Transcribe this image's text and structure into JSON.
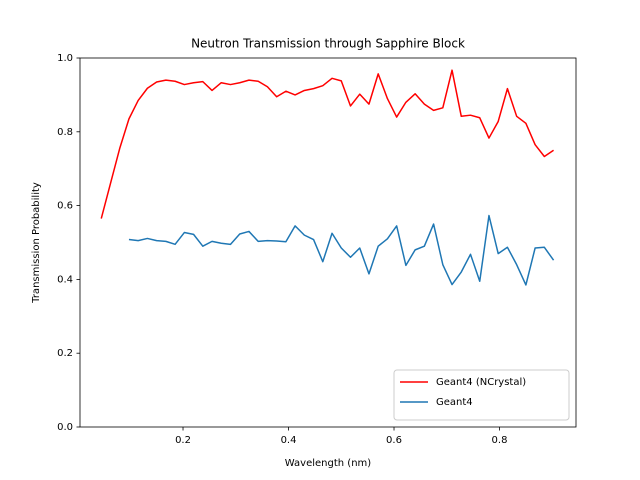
{
  "chart_data": {
    "type": "line",
    "title": "Neutron Transmission through Sapphire Block",
    "xlabel": "Wavelength (nm)",
    "ylabel": "Transmission Probability",
    "x": [
      0.045,
      0.0625,
      0.08,
      0.0975,
      0.115,
      0.1325,
      0.15,
      0.1675,
      0.185,
      0.2025,
      0.22,
      0.2375,
      0.255,
      0.2725,
      0.29,
      0.3075,
      0.325,
      0.3425,
      0.36,
      0.3775,
      0.395,
      0.4125,
      0.43,
      0.4475,
      0.465,
      0.4825,
      0.5,
      0.5175,
      0.535,
      0.5525,
      0.57,
      0.5875,
      0.605,
      0.6225,
      0.64,
      0.6575,
      0.675,
      0.6925,
      0.71,
      0.7275,
      0.745,
      0.7625,
      0.78,
      0.7975,
      0.815,
      0.8325,
      0.85,
      0.8675,
      0.885,
      0.9025
    ],
    "series": [
      {
        "name": "Geant4 (NCrystal)",
        "color": "#ff0000",
        "values": [
          0.565,
          0.66,
          0.755,
          0.835,
          0.885,
          0.918,
          0.935,
          0.94,
          0.937,
          0.928,
          0.933,
          0.936,
          0.912,
          0.933,
          0.928,
          0.933,
          0.94,
          0.937,
          0.922,
          0.895,
          0.91,
          0.9,
          0.912,
          0.917,
          0.925,
          0.945,
          0.938,
          0.87,
          0.902,
          0.875,
          0.957,
          0.89,
          0.84,
          0.88,
          0.903,
          0.875,
          0.858,
          0.865,
          0.967,
          0.842,
          0.845,
          0.838,
          0.783,
          0.828,
          0.917,
          0.842,
          0.823,
          0.765,
          0.733,
          0.75
        ]
      },
      {
        "name": "Geant4",
        "color": "#1f77b4",
        "values": [
          null,
          null,
          null,
          0.508,
          0.505,
          0.511,
          0.505,
          0.503,
          0.495,
          0.527,
          0.522,
          0.49,
          0.503,
          0.498,
          0.495,
          0.523,
          0.53,
          0.503,
          0.505,
          0.504,
          0.502,
          0.545,
          0.52,
          0.508,
          0.448,
          0.525,
          0.485,
          0.46,
          0.485,
          0.415,
          0.49,
          0.51,
          0.545,
          0.438,
          0.48,
          0.49,
          0.55,
          0.44,
          0.386,
          0.42,
          0.468,
          0.395,
          0.573,
          0.47,
          0.487,
          0.44,
          0.385,
          0.485,
          0.487,
          0.452
        ]
      }
    ],
    "xlim": [
      0.0047,
      0.945
    ],
    "ylim": [
      0,
      1
    ],
    "xticks": [
      0.2,
      0.4,
      0.6,
      0.8
    ],
    "yticks": [
      {
        "value": 0,
        "label": "0.0"
      },
      0.2,
      0.4,
      0.6,
      0.8,
      {
        "value": 1,
        "label": "1.0"
      }
    ],
    "legend": "lower right",
    "grid": false
  }
}
